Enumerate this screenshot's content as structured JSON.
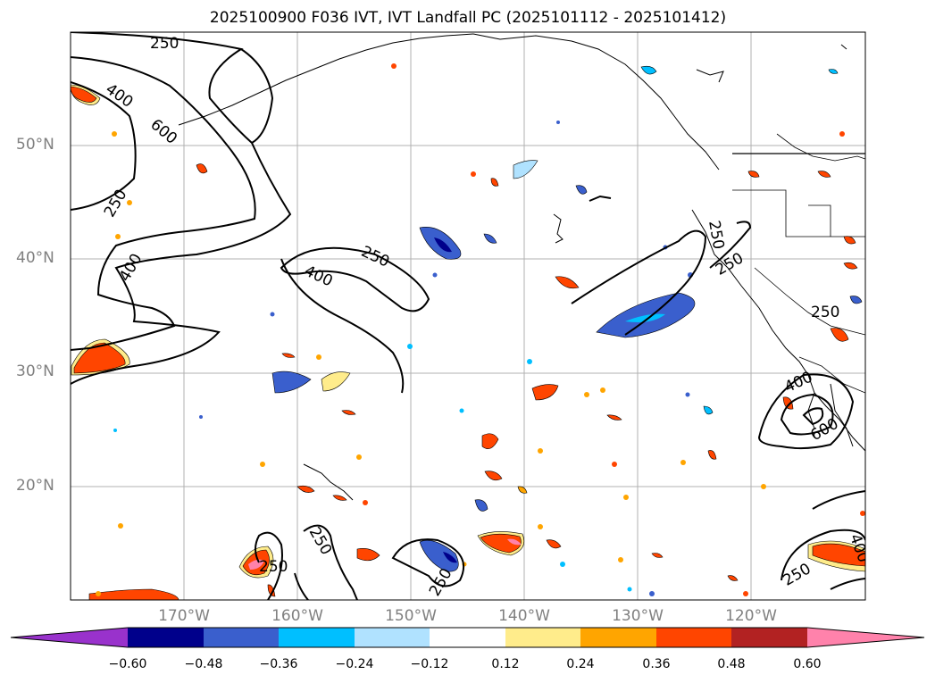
{
  "title": "2025100900 F036 IVT, IVT Landfall PC (2025101112 - 2025101412)",
  "lat_labels": [
    "50°N",
    "40°N",
    "30°N",
    "20°N"
  ],
  "lon_labels": [
    "170°W",
    "160°W",
    "150°W",
    "140°W",
    "130°W",
    "120°W"
  ],
  "contour_labels": {
    "c250": "250",
    "c400": "400",
    "c600": "600"
  },
  "colorbar": {
    "tick_labels": [
      "−0.60",
      "−0.48",
      "−0.36",
      "−0.24",
      "−0.12",
      "0.12",
      "0.24",
      "0.36",
      "0.48",
      "0.60"
    ],
    "colors": [
      "#9932cc",
      "#00008b",
      "#3a5fcd",
      "#00bfff",
      "#b0e2ff",
      "#ffffff",
      "#ffec8b",
      "#ffa500",
      "#ff4500",
      "#b22222",
      "#ff82ab"
    ]
  },
  "fill_colors": {
    "neg_dark": "#00008b",
    "neg_mid": "#3a5fcd",
    "neg_light": "#00bfff",
    "neg_pale": "#b0e2ff",
    "pos_pale": "#ffec8b",
    "pos_orange": "#ffa500",
    "pos_red": "#ff4500",
    "pos_dark": "#b22222",
    "pos_pink": "#ff82ab"
  }
}
